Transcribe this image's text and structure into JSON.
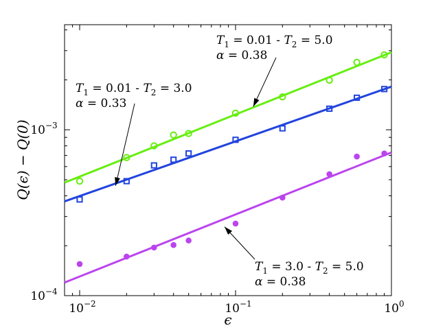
{
  "chart_data": {
    "type": "scatter",
    "x_scale": "log",
    "y_scale": "log",
    "xlim": [
      0.008,
      1.0
    ],
    "ylim": [
      0.0001,
      0.0043
    ],
    "xlabel": "ϵ",
    "ylabel": "Q(ϵ) − Q(0)",
    "x_ticks": [
      0.01,
      0.1,
      1
    ],
    "x_tick_labels": [
      {
        "base": "10",
        "exp": "−2"
      },
      {
        "base": "10",
        "exp": "−1"
      },
      {
        "base": "10",
        "exp": "0"
      }
    ],
    "y_ticks": [
      0.0001,
      0.001
    ],
    "y_tick_labels": [
      {
        "base": "10",
        "exp": "−4"
      },
      {
        "base": "10",
        "exp": "−3"
      }
    ],
    "grid": false,
    "legend": "none",
    "series": [
      {
        "marker": "open-circle",
        "color": "#66ee11",
        "x": [
          0.01,
          0.02,
          0.03,
          0.04,
          0.05,
          0.1,
          0.2,
          0.4,
          0.6,
          0.9
        ],
        "y": [
          0.00049,
          0.00068,
          0.0008,
          0.00093,
          0.00095,
          0.00126,
          0.00158,
          0.00199,
          0.00255,
          0.00283
        ],
        "fit": {
          "x": [
            0.008,
            1.0
          ],
          "y": [
            0.00048,
            0.00293
          ]
        }
      },
      {
        "marker": "open-square",
        "color": "#2244dd",
        "x": [
          0.01,
          0.02,
          0.03,
          0.04,
          0.05,
          0.1,
          0.2,
          0.4,
          0.6,
          0.9
        ],
        "y": [
          0.00038,
          0.00049,
          0.00061,
          0.00066,
          0.00072,
          0.00087,
          0.00102,
          0.00134,
          0.00156,
          0.00176
        ],
        "fit": {
          "x": [
            0.008,
            1.0
          ],
          "y": [
            0.00037,
            0.00182
          ]
        }
      },
      {
        "marker": "filled-circle",
        "color": "#bb44ee",
        "x": [
          0.01,
          0.02,
          0.03,
          0.04,
          0.05,
          0.1,
          0.2,
          0.4,
          0.6,
          0.9
        ],
        "y": [
          0.000155,
          0.000172,
          0.000195,
          0.000202,
          0.000215,
          0.000272,
          0.00039,
          0.00054,
          0.00069,
          0.00072
        ],
        "fit": {
          "x": [
            0.008,
            1.0
          ],
          "y": [
            0.00012,
            0.00073
          ]
        }
      }
    ],
    "annotations": [
      {
        "id": "green",
        "line1": {
          "lhs": "T",
          "sub1": "1",
          "mid": " = 0.01 - ",
          "rhs": "T",
          "sub2": "2",
          "tail": " = 5.0"
        },
        "line2": {
          "sym": "α",
          "rest": " = 0.38"
        },
        "arrow_to": {
          "x": 0.13,
          "y": 0.00138
        }
      },
      {
        "id": "blue",
        "line1": {
          "lhs": "T",
          "sub1": "1",
          "mid": " = 0.01 - ",
          "rhs": "T",
          "sub2": "2",
          "tail": " = 3.0"
        },
        "line2": {
          "sym": "α",
          "rest": " = 0.33"
        },
        "arrow_to": {
          "x": 0.017,
          "y": 0.00046
        }
      },
      {
        "id": "purple",
        "line1": {
          "lhs": "T",
          "sub1": "1",
          "mid": " = 3.0 - ",
          "rhs": "T",
          "sub2": "2",
          "tail": " = 5.0"
        },
        "line2": {
          "sym": "α",
          "rest": " = 0.38"
        },
        "arrow_to": {
          "x": 0.085,
          "y": 0.00026
        }
      }
    ]
  }
}
